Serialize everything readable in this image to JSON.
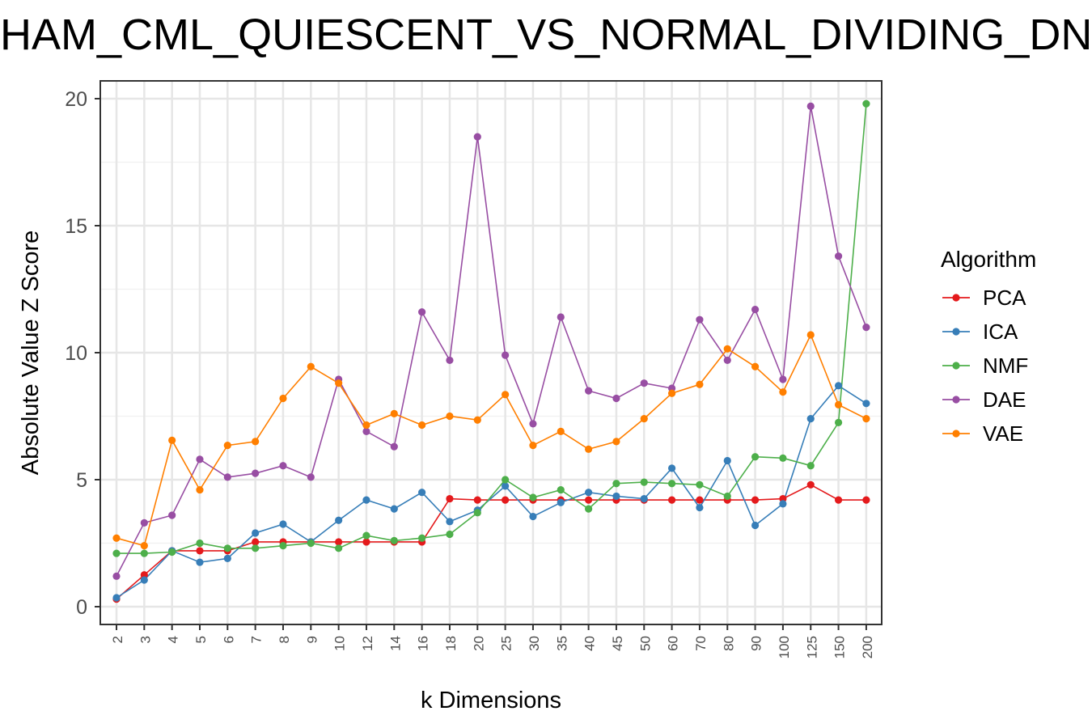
{
  "chart_data": {
    "type": "line",
    "title": "HAM_CML_QUIESCENT_VS_NORMAL_DIVIDING_DN",
    "xlabel": "k Dimensions",
    "ylabel": "Absolute Value Z Score",
    "ylim": [
      -0.7,
      20.7
    ],
    "yticks": [
      0,
      5,
      10,
      15,
      20
    ],
    "grid": true,
    "legend_position": "right",
    "legend_title": "Algorithm",
    "categories": [
      "2",
      "3",
      "4",
      "5",
      "6",
      "7",
      "8",
      "9",
      "10",
      "12",
      "14",
      "16",
      "18",
      "20",
      "25",
      "30",
      "35",
      "40",
      "45",
      "50",
      "60",
      "70",
      "80",
      "90",
      "100",
      "125",
      "150",
      "200"
    ],
    "series": [
      {
        "name": "PCA",
        "color": "#e41a1c",
        "values": [
          0.3,
          1.25,
          2.2,
          2.2,
          2.2,
          2.55,
          2.55,
          2.55,
          2.55,
          2.55,
          2.55,
          2.55,
          4.25,
          4.2,
          4.2,
          4.2,
          4.2,
          4.2,
          4.2,
          4.2,
          4.2,
          4.2,
          4.2,
          4.2,
          4.25,
          4.8,
          4.2,
          4.2
        ]
      },
      {
        "name": "ICA",
        "color": "#377eb8",
        "values": [
          0.35,
          1.05,
          2.2,
          1.75,
          1.9,
          2.9,
          3.25,
          2.55,
          3.4,
          4.2,
          3.85,
          4.5,
          3.35,
          3.8,
          4.75,
          3.55,
          4.1,
          4.5,
          4.35,
          4.25,
          5.45,
          3.9,
          5.75,
          3.2,
          4.05,
          7.4,
          8.7,
          8.0
        ]
      },
      {
        "name": "NMF",
        "color": "#4daf4a",
        "values": [
          2.1,
          2.1,
          2.15,
          2.5,
          2.3,
          2.3,
          2.4,
          2.5,
          2.3,
          2.8,
          2.6,
          2.7,
          2.85,
          3.7,
          5.0,
          4.3,
          4.6,
          3.85,
          4.85,
          4.9,
          4.85,
          4.8,
          4.35,
          5.9,
          5.85,
          5.55,
          7.25,
          19.8
        ]
      },
      {
        "name": "DAE",
        "color": "#984ea3",
        "values": [
          1.2,
          3.3,
          3.6,
          5.8,
          5.1,
          5.25,
          5.55,
          5.1,
          8.95,
          6.9,
          6.3,
          11.6,
          9.7,
          18.5,
          9.9,
          7.2,
          11.4,
          8.5,
          8.2,
          8.8,
          8.6,
          11.3,
          9.7,
          11.7,
          8.95,
          19.7,
          13.8,
          11.0
        ]
      },
      {
        "name": "VAE",
        "color": "#ff7f00",
        "values": [
          2.7,
          2.4,
          6.55,
          4.6,
          6.35,
          6.5,
          8.2,
          9.45,
          8.8,
          7.15,
          7.6,
          7.15,
          7.5,
          7.35,
          8.35,
          6.35,
          6.9,
          6.2,
          6.5,
          7.4,
          8.4,
          8.75,
          10.15,
          9.45,
          8.45,
          10.7,
          7.95,
          7.4
        ]
      }
    ]
  }
}
